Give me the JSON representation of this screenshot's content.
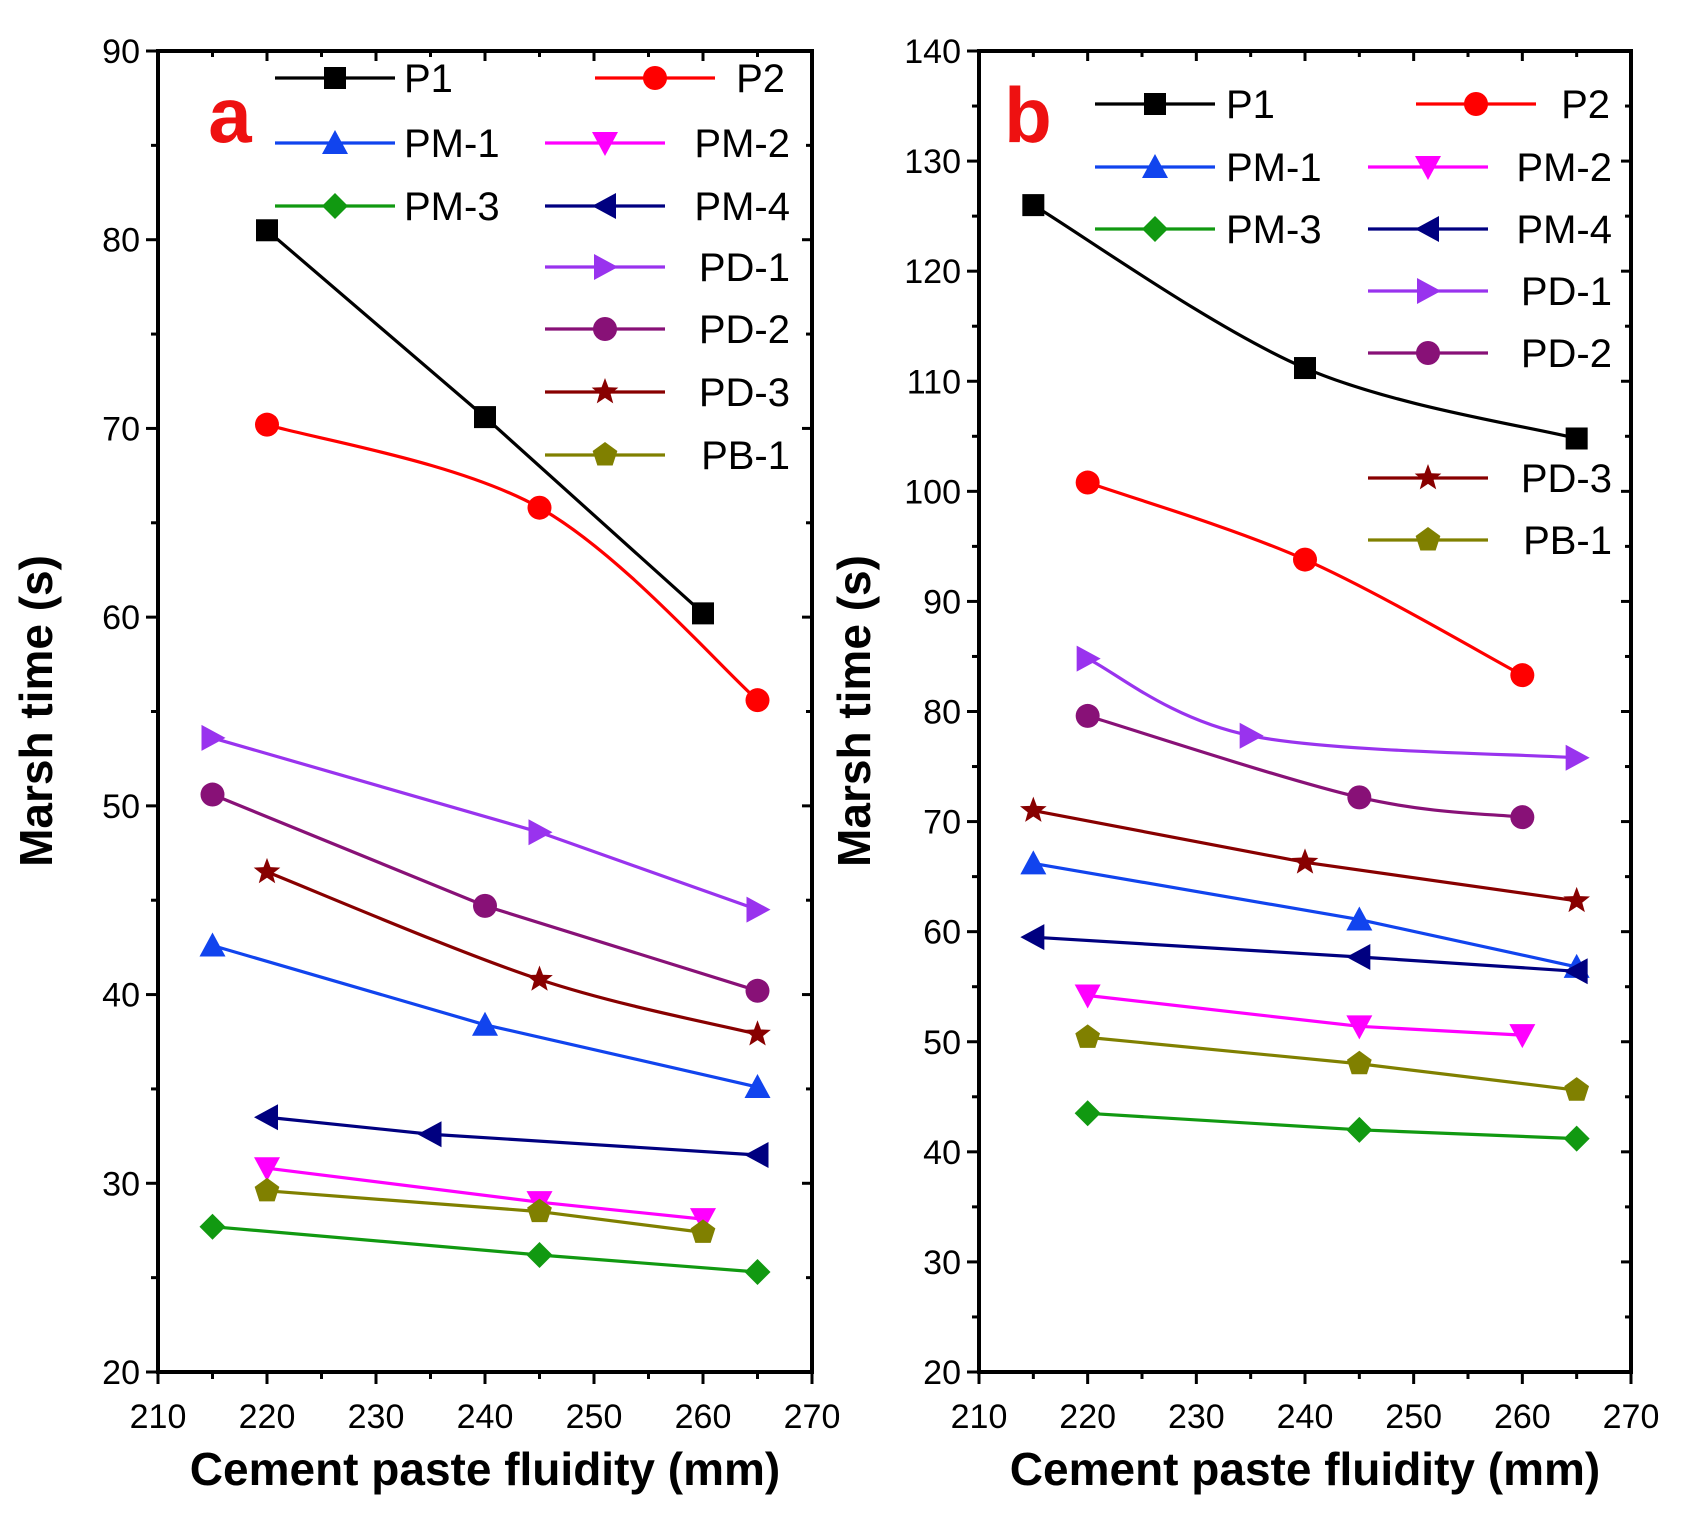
{
  "chart_data": [
    {
      "type": "line",
      "panel_label": "a",
      "panel_label_color": "#ee1111",
      "xlabel": "Cement paste fluidity (mm)",
      "ylabel": "Marsh time (s)",
      "xlim": [
        210,
        270
      ],
      "ylim": [
        20,
        90
      ],
      "xticks": [
        210,
        220,
        230,
        240,
        250,
        260,
        270
      ],
      "yticks": [
        20,
        30,
        40,
        50,
        60,
        70,
        80,
        90
      ],
      "grid": false,
      "series": [
        {
          "name": "P1",
          "color": "#000000",
          "marker": "square",
          "smooth": false,
          "x": [
            220,
            240,
            260
          ],
          "y": [
            80.5,
            70.6,
            60.2
          ]
        },
        {
          "name": "P2",
          "color": "#ff0000",
          "marker": "circle",
          "smooth": true,
          "x": [
            220,
            245,
            265
          ],
          "y": [
            70.2,
            65.8,
            55.6
          ]
        },
        {
          "name": "PM-1",
          "color": "#1144ee",
          "marker": "triangle-up",
          "smooth": false,
          "x": [
            215,
            240,
            265
          ],
          "y": [
            42.6,
            38.4,
            35.1
          ]
        },
        {
          "name": "PM-2",
          "color": "#ff00ff",
          "marker": "triangle-down",
          "smooth": false,
          "x": [
            220,
            245,
            260
          ],
          "y": [
            30.8,
            29.0,
            28.1
          ]
        },
        {
          "name": "PM-3",
          "color": "#119911",
          "marker": "diamond",
          "smooth": false,
          "x": [
            215,
            245,
            265
          ],
          "y": [
            27.7,
            26.2,
            25.3
          ]
        },
        {
          "name": "PM-4",
          "color": "#000080",
          "marker": "triangle-left",
          "smooth": false,
          "x": [
            220,
            235,
            265
          ],
          "y": [
            33.5,
            32.6,
            31.5
          ]
        },
        {
          "name": "PD-1",
          "color": "#9933ee",
          "marker": "triangle-right",
          "smooth": false,
          "x": [
            215,
            245,
            265
          ],
          "y": [
            53.6,
            48.6,
            44.5
          ]
        },
        {
          "name": "PD-2",
          "color": "#881177",
          "marker": "circle",
          "smooth": false,
          "x": [
            215,
            240,
            265
          ],
          "y": [
            50.6,
            44.7,
            40.2
          ]
        },
        {
          "name": "PD-3",
          "color": "#880000",
          "marker": "star",
          "smooth": true,
          "x": [
            220,
            245,
            265
          ],
          "y": [
            46.5,
            40.8,
            37.9
          ]
        },
        {
          "name": "PB-1",
          "color": "#808000",
          "marker": "pentagon",
          "smooth": false,
          "x": [
            220,
            245,
            260
          ],
          "y": [
            29.6,
            28.5,
            27.4
          ]
        }
      ]
    },
    {
      "type": "line",
      "panel_label": "b",
      "panel_label_color": "#ee1111",
      "xlabel": "Cement paste fluidity (mm)",
      "ylabel": "Marsh time (s)",
      "xlim": [
        210,
        270
      ],
      "ylim": [
        20,
        140
      ],
      "xticks": [
        210,
        220,
        230,
        240,
        250,
        260,
        270
      ],
      "yticks": [
        20,
        30,
        40,
        50,
        60,
        70,
        80,
        90,
        100,
        110,
        120,
        130,
        140
      ],
      "grid": false,
      "series": [
        {
          "name": "P1",
          "color": "#000000",
          "marker": "square",
          "smooth": true,
          "x": [
            215,
            240,
            265
          ],
          "y": [
            126.0,
            111.2,
            104.8
          ]
        },
        {
          "name": "P2",
          "color": "#ff0000",
          "marker": "circle",
          "smooth": true,
          "x": [
            220,
            240,
            260
          ],
          "y": [
            100.8,
            93.8,
            83.3
          ]
        },
        {
          "name": "PM-1",
          "color": "#1144ee",
          "marker": "triangle-up",
          "smooth": false,
          "x": [
            215,
            245,
            265
          ],
          "y": [
            66.2,
            61.1,
            56.8
          ]
        },
        {
          "name": "PM-2",
          "color": "#ff00ff",
          "marker": "triangle-down",
          "smooth": false,
          "x": [
            220,
            245,
            260
          ],
          "y": [
            54.2,
            51.4,
            50.6
          ]
        },
        {
          "name": "PM-3",
          "color": "#119911",
          "marker": "diamond",
          "smooth": false,
          "x": [
            220,
            245,
            265
          ],
          "y": [
            43.5,
            42.0,
            41.2
          ]
        },
        {
          "name": "PM-4",
          "color": "#000080",
          "marker": "triangle-left",
          "smooth": false,
          "x": [
            215,
            245,
            265
          ],
          "y": [
            59.5,
            57.7,
            56.4
          ]
        },
        {
          "name": "PD-1",
          "color": "#9933ee",
          "marker": "triangle-right",
          "smooth": true,
          "x": [
            220,
            235,
            265
          ],
          "y": [
            84.8,
            77.8,
            75.8
          ]
        },
        {
          "name": "PD-2",
          "color": "#881177",
          "marker": "circle",
          "smooth": true,
          "x": [
            220,
            245,
            260
          ],
          "y": [
            79.6,
            72.2,
            70.4
          ]
        },
        {
          "name": "PD-3",
          "color": "#880000",
          "marker": "star",
          "smooth": false,
          "x": [
            215,
            240,
            265
          ],
          "y": [
            71.0,
            66.3,
            62.8
          ]
        },
        {
          "name": "PB-1",
          "color": "#808000",
          "marker": "pentagon",
          "smooth": false,
          "x": [
            220,
            245,
            265
          ],
          "y": [
            50.4,
            48.0,
            45.6
          ]
        }
      ]
    }
  ]
}
